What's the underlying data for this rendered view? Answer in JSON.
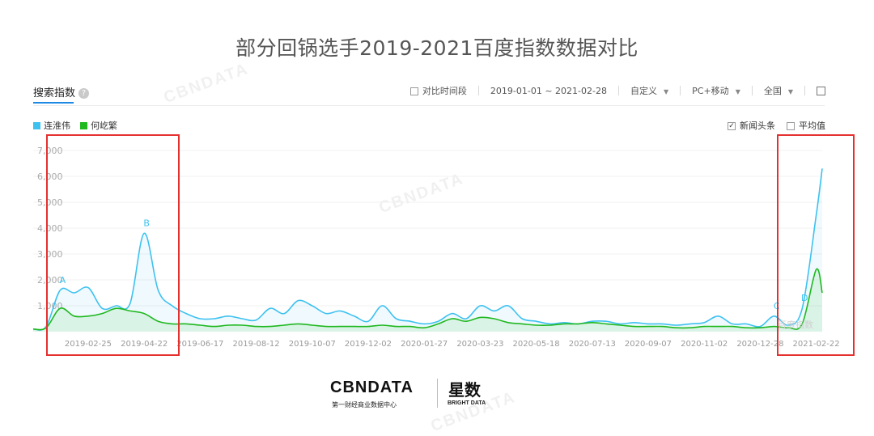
{
  "title": "部分回锅选手2019-2021百度指数数据对比",
  "panel": {
    "title": "搜索指数",
    "help_icon": "?",
    "toolbar": {
      "compare_label": "对比时间段",
      "date_range": "2019-01-01 ~ 2021-02-28",
      "custom_label": "自定义",
      "device_label": "PC+移动",
      "region_label": "全国",
      "export_icon": "export-icon"
    },
    "options": {
      "news_label": "新闻头条",
      "news_checked": true,
      "avg_label": "平均值",
      "avg_checked": false
    },
    "watermark_text": "百度指数"
  },
  "footer": {
    "brand_left": "CBNDATA",
    "brand_left_sub": "第一财经商业数据中心",
    "brand_right": "星数",
    "brand_right_sub": "BRIGHT DATA"
  },
  "watermarks": [
    "CBNDATA",
    "CBNDATA",
    "CBNDATA"
  ],
  "colors": {
    "series_1": "#3ec1ef",
    "series_2": "#1fb81f",
    "highlight": "#e53030",
    "grid": "#f0f0f0",
    "axis_text": "#aaaaaa"
  },
  "chart_data": {
    "type": "line",
    "title": "",
    "xlabel": "",
    "ylabel": "",
    "ylim": [
      0,
      7000
    ],
    "yticks": [
      "1,000",
      "2,000",
      "3,000",
      "4,000",
      "5,000",
      "6,000",
      "7,000"
    ],
    "xticks": [
      "2019-02-25",
      "2019-04-22",
      "2019-06-17",
      "2019-08-12",
      "2019-10-07",
      "2019-12-02",
      "2020-01-27",
      "2020-03-23",
      "2020-05-18",
      "2020-07-13",
      "2020-09-07",
      "2020-11-02",
      "2020-12-28",
      "2021-02-22"
    ],
    "x": [
      "2019-01-01",
      "2019-01-14",
      "2019-01-28",
      "2019-02-11",
      "2019-02-25",
      "2019-03-11",
      "2019-03-25",
      "2019-04-08",
      "2019-04-22",
      "2019-05-06",
      "2019-05-20",
      "2019-06-03",
      "2019-06-17",
      "2019-07-01",
      "2019-07-15",
      "2019-07-29",
      "2019-08-12",
      "2019-08-26",
      "2019-09-09",
      "2019-09-23",
      "2019-10-07",
      "2019-10-21",
      "2019-11-04",
      "2019-11-18",
      "2019-12-02",
      "2019-12-16",
      "2019-12-30",
      "2020-01-13",
      "2020-01-27",
      "2020-02-10",
      "2020-02-24",
      "2020-03-09",
      "2020-03-23",
      "2020-04-06",
      "2020-04-20",
      "2020-05-04",
      "2020-05-18",
      "2020-06-01",
      "2020-06-15",
      "2020-06-29",
      "2020-07-13",
      "2020-07-27",
      "2020-08-10",
      "2020-08-24",
      "2020-09-07",
      "2020-09-21",
      "2020-10-05",
      "2020-10-19",
      "2020-11-02",
      "2020-11-16",
      "2020-11-30",
      "2020-12-14",
      "2020-12-28",
      "2021-01-11",
      "2021-01-25",
      "2021-02-08",
      "2021-02-22",
      "2021-02-28"
    ],
    "series": [
      {
        "name": "连淮伟",
        "values": [
          100,
          200,
          1600,
          1500,
          1700,
          900,
          1000,
          1100,
          3800,
          1600,
          1000,
          700,
          500,
          500,
          600,
          500,
          450,
          900,
          700,
          1200,
          1000,
          700,
          800,
          600,
          400,
          1000,
          500,
          400,
          300,
          400,
          700,
          500,
          1000,
          800,
          1000,
          500,
          400,
          300,
          350,
          300,
          400,
          400,
          300,
          350,
          300,
          300,
          250,
          300,
          350,
          600,
          300,
          300,
          200,
          600,
          250,
          900,
          4500,
          6300
        ]
      },
      {
        "name": "何屹繁",
        "values": [
          100,
          150,
          900,
          600,
          600,
          700,
          900,
          800,
          700,
          400,
          300,
          300,
          250,
          200,
          250,
          250,
          200,
          200,
          250,
          300,
          250,
          200,
          200,
          200,
          200,
          250,
          200,
          200,
          150,
          300,
          500,
          400,
          550,
          500,
          350,
          300,
          250,
          250,
          300,
          300,
          350,
          300,
          250,
          200,
          200,
          200,
          150,
          150,
          200,
          200,
          200,
          150,
          150,
          200,
          150,
          300,
          2400,
          1500
        ]
      }
    ],
    "annotations": [
      {
        "label": "A",
        "x": "2019-01-28"
      },
      {
        "label": "B",
        "x": "2019-04-22"
      },
      {
        "label": "C",
        "x": "2021-01-11"
      },
      {
        "label": "D",
        "x": "2021-02-08"
      }
    ],
    "grid": true,
    "legend": "top-left"
  }
}
